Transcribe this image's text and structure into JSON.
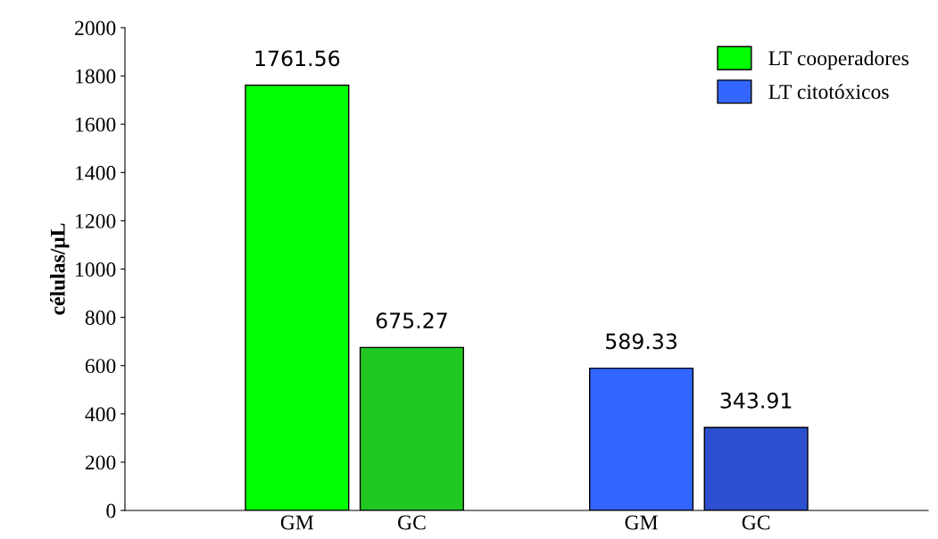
{
  "chart_data": {
    "type": "bar",
    "ylabel": "células/μL",
    "categories": [
      null,
      "GM",
      "GC",
      null,
      "GM",
      "GC",
      null
    ],
    "series": [
      {
        "name": "LT cooperadores",
        "color": "#00ff00",
        "colors": [
          null,
          "#00ff00",
          "#22c822",
          null,
          null,
          null,
          null
        ],
        "values": [
          null,
          1761.56,
          675.27,
          null,
          null,
          null,
          null
        ]
      },
      {
        "name": "LT citotóxicos",
        "color": "#3366ff",
        "colors": [
          null,
          null,
          null,
          null,
          "#3366ff",
          "#2c50d0",
          null
        ],
        "values": [
          null,
          null,
          null,
          null,
          589.33,
          343.91,
          null
        ]
      }
    ],
    "ylim": [
      0,
      2000
    ],
    "yticks": [
      0,
      200,
      400,
      600,
      800,
      1000,
      1200,
      1400,
      1600,
      1800,
      2000
    ],
    "data_labels": true,
    "grid": false,
    "legend": "top right"
  }
}
